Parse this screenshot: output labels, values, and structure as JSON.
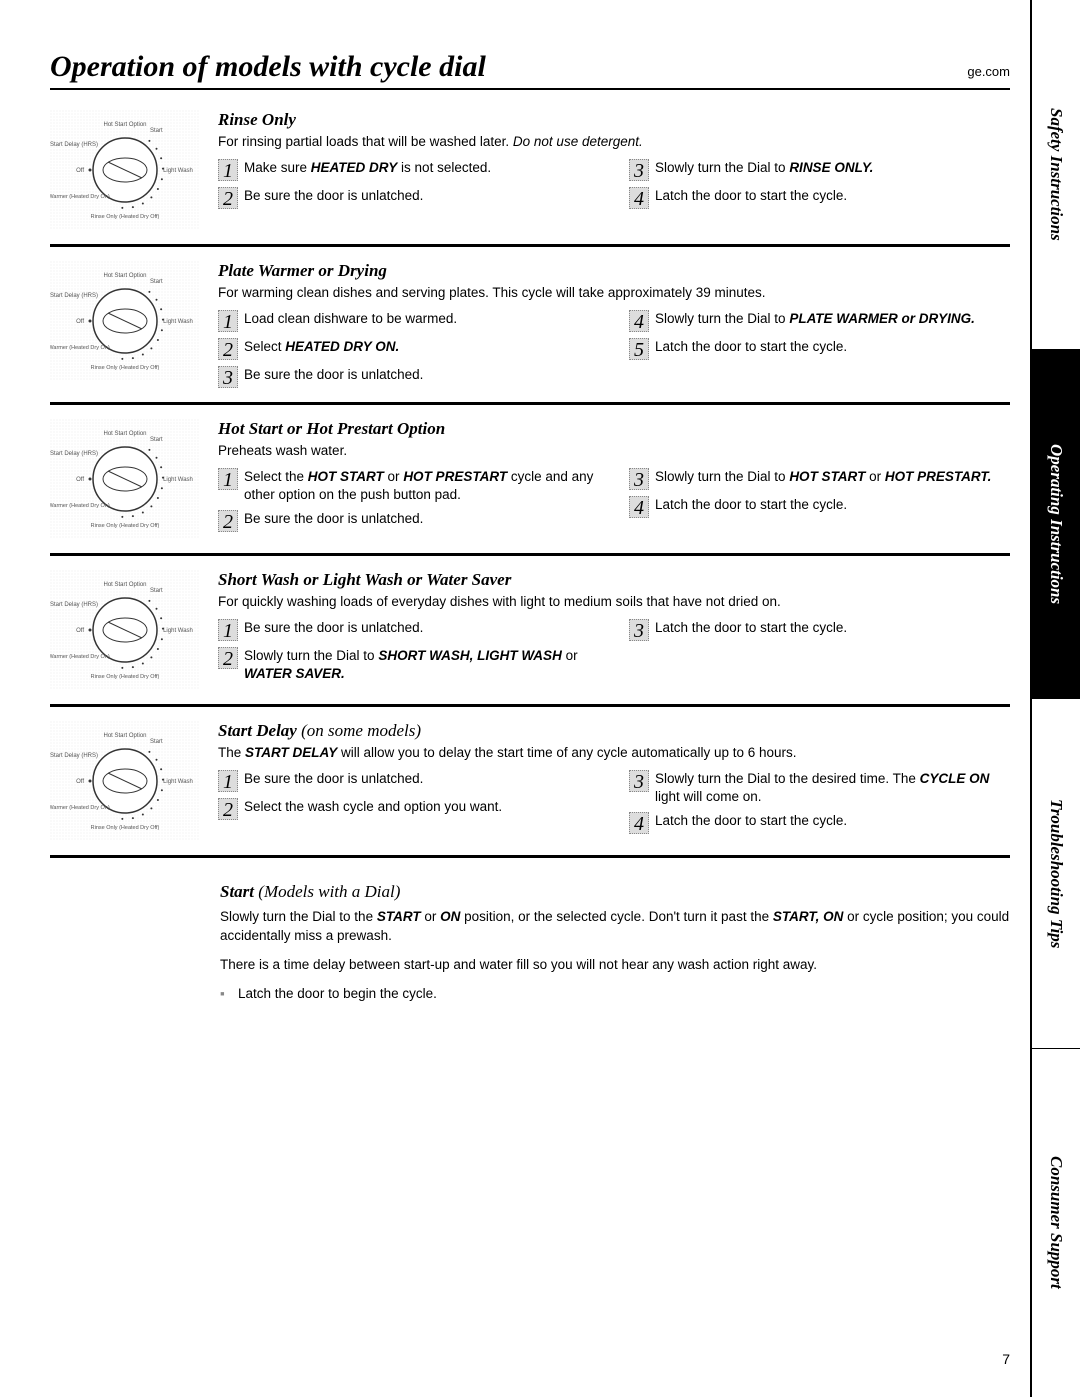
{
  "header": {
    "title": "Operation of models with cycle dial",
    "site": "ge.com"
  },
  "tabs": [
    {
      "label": "Safety Instructions",
      "active": false
    },
    {
      "label": "Operating Instructions",
      "active": true
    },
    {
      "label": "Troubleshooting Tips",
      "active": false
    },
    {
      "label": "Consumer Support",
      "active": false
    }
  ],
  "sections": [
    {
      "title": "Rinse Only",
      "desc_pre": "For rinsing partial loads that will be washed later. ",
      "desc_em": "Do not use detergent.",
      "left": [
        {
          "n": "1",
          "pre": "Make sure ",
          "b": "HEATED DRY",
          "post": " is not selected."
        },
        {
          "n": "2",
          "pre": "Be sure the door is unlatched.",
          "b": "",
          "post": ""
        }
      ],
      "right": [
        {
          "n": "3",
          "pre": "Slowly turn the Dial to ",
          "b": "RINSE ONLY.",
          "post": ""
        },
        {
          "n": "4",
          "pre": "Latch the door to start the cycle.",
          "b": "",
          "post": ""
        }
      ]
    },
    {
      "title": "Plate Warmer or Drying",
      "desc_pre": "For warming clean dishes and serving plates. This cycle will take approximately 39 minutes.",
      "desc_em": "",
      "left": [
        {
          "n": "1",
          "pre": "Load clean dishware to be warmed.",
          "b": "",
          "post": ""
        },
        {
          "n": "2",
          "pre": "Select ",
          "b": "HEATED DRY ON.",
          "post": ""
        },
        {
          "n": "3",
          "pre": "Be sure the door is unlatched.",
          "b": "",
          "post": ""
        }
      ],
      "right": [
        {
          "n": "4",
          "pre": "Slowly turn the Dial to ",
          "b": "PLATE WARMER or DRYING.",
          "post": ""
        },
        {
          "n": "5",
          "pre": "Latch the door to start the cycle.",
          "b": "",
          "post": ""
        }
      ]
    },
    {
      "title": "Hot Start or Hot Prestart Option",
      "desc_pre": "Preheats wash water.",
      "desc_em": "",
      "left": [
        {
          "n": "1",
          "pre": "Select the ",
          "b": "HOT START",
          "mid": " or ",
          "b2": "HOT PRESTART",
          "post": " cycle and any other option on the push button pad."
        },
        {
          "n": "2",
          "pre": "Be sure the door is unlatched.",
          "b": "",
          "post": ""
        }
      ],
      "right": [
        {
          "n": "3",
          "pre": "Slowly turn the Dial to ",
          "b": "HOT START",
          "mid": " or ",
          "b2": "HOT PRESTART.",
          "post": ""
        },
        {
          "n": "4",
          "pre": "Latch the door to start the cycle.",
          "b": "",
          "post": ""
        }
      ]
    },
    {
      "title": "Short Wash or Light Wash or Water Saver",
      "desc_pre": "For quickly washing loads of everyday dishes with light to medium soils that have not dried on.",
      "desc_em": "",
      "left": [
        {
          "n": "1",
          "pre": "Be sure the door is unlatched.",
          "b": "",
          "post": ""
        },
        {
          "n": "2",
          "pre": "Slowly turn the Dial to ",
          "b": "SHORT WASH, LIGHT WASH",
          "mid": " or ",
          "b2": "WATER SAVER.",
          "post": ""
        }
      ],
      "right": [
        {
          "n": "3",
          "pre": "Latch the door to start the cycle.",
          "b": "",
          "post": ""
        }
      ]
    },
    {
      "title": "Start Delay",
      "title_note": "(on some models)",
      "desc_pre": "The ",
      "desc_b": "START DELAY",
      "desc_post": " will allow you to delay the start time of any cycle automatically up to 6 hours.",
      "left": [
        {
          "n": "1",
          "pre": "Be sure the door is unlatched.",
          "b": "",
          "post": ""
        },
        {
          "n": "2",
          "pre": "Select the wash cycle and option you want.",
          "b": "",
          "post": ""
        }
      ],
      "right": [
        {
          "n": "3",
          "pre": "Slowly turn the Dial to the desired time. The ",
          "b": "CYCLE ON",
          "post": " light will come on."
        },
        {
          "n": "4",
          "pre": "Latch the door to start the cycle.",
          "b": "",
          "post": ""
        }
      ]
    }
  ],
  "start_block": {
    "title": "Start",
    "title_note": "(Models with a Dial)",
    "p1_pre": "Slowly turn the Dial to the ",
    "p1_b1": "START",
    "p1_mid1": " or ",
    "p1_b2": "ON",
    "p1_mid2": " position, or the selected cycle. Don't turn it past the ",
    "p1_b3": "START, ON",
    "p1_post": " or cycle position; you could accidentally miss a prewash.",
    "p2": "There is a time delay between start-up and water fill so you will not hear any wash action right away.",
    "bullet": "Latch the door to begin the cycle."
  },
  "dial_labels": {
    "top_left": "Hot Start Option",
    "top_right": "Start",
    "left": "Start Delay (HRS)",
    "off": "Off",
    "right": "Light Wash",
    "bl": "Plate Warmer (Heated Dry On)",
    "bottom": "Rinse Only (Heated Dry Off)"
  },
  "page_number": "7"
}
